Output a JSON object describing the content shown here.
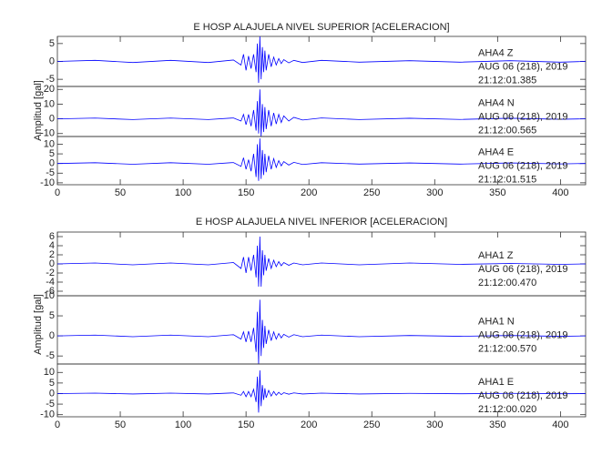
{
  "chart_data": [
    {
      "type": "line",
      "title": "E HOSP ALAJUELA NIVEL SUPERIOR [ACELERACION]",
      "y_label": "Amplitud [gal]",
      "xlim": [
        0,
        420
      ],
      "xticks": [
        0,
        50,
        100,
        150,
        200,
        250,
        300,
        350,
        400
      ],
      "x": [
        0,
        30,
        60,
        90,
        120,
        140,
        146,
        148,
        150,
        152,
        154,
        156,
        158,
        159,
        160,
        161,
        162,
        163,
        164,
        165,
        166,
        168,
        170,
        172,
        174,
        176,
        178,
        180,
        184,
        188,
        195,
        210,
        240,
        280,
        320,
        360,
        400,
        420
      ],
      "panels": [
        {
          "ylim": [
            -7,
            7
          ],
          "yticks": [
            -5,
            0,
            5
          ],
          "date": "AUG 06 (218), 2019",
          "time": "21:12:01.385",
          "series": [
            {
              "name": "AHA4   Z",
              "color": "#0000ff",
              "values": [
                0,
                0.3,
                -0.3,
                0.3,
                -0.3,
                0.4,
                -1,
                2,
                -2.5,
                1.5,
                -2,
                2,
                -3,
                5,
                -6,
                7,
                -5,
                4,
                -3,
                3,
                -2.5,
                2,
                -1.5,
                1.2,
                -1,
                0.8,
                -0.6,
                0.5,
                -0.4,
                0.3,
                -0.3,
                0.3,
                -0.2,
                0.2,
                -0.2,
                0.2,
                -0.2,
                0
              ]
            }
          ]
        },
        {
          "ylim": [
            -12,
            22
          ],
          "yticks": [
            -10,
            0,
            10,
            20
          ],
          "date": "AUG 06 (218), 2019",
          "time": "21:12:00.565",
          "series": [
            {
              "name": "AHA4   N",
              "color": "#0000ff",
              "values": [
                0,
                0.5,
                -0.5,
                0.5,
                -0.5,
                0.6,
                -1.5,
                3,
                -4,
                3,
                -5,
                6,
                -8,
                12,
                -10,
                20,
                -12,
                10,
                -9,
                8,
                -7,
                6,
                -5,
                4,
                -3.5,
                3,
                -2.5,
                2,
                -1.5,
                1,
                -0.8,
                0.6,
                -0.5,
                0.4,
                -0.4,
                0.4,
                -0.3,
                0
              ]
            }
          ]
        },
        {
          "ylim": [
            -11,
            14
          ],
          "yticks": [
            -10,
            -5,
            0,
            5,
            10
          ],
          "date": "AUG 06 (218), 2019",
          "time": "21:12:01.515",
          "series": [
            {
              "name": "AHA4   E",
              "color": "#0000ff",
              "values": [
                0,
                0.4,
                -0.4,
                0.4,
                -0.4,
                0.5,
                -1.5,
                3,
                -3,
                2,
                -4,
                5,
                -7,
                10,
                -9,
                13,
                -8,
                7,
                -6,
                5,
                -4.5,
                4,
                -3,
                2.5,
                -2,
                1.5,
                -1.2,
                1,
                -0.8,
                0.6,
                -0.5,
                0.4,
                -0.3,
                0.3,
                -0.3,
                0.3,
                -0.2,
                0
              ]
            }
          ]
        }
      ]
    },
    {
      "type": "line",
      "title": "E HOSP ALAJUELA NIVEL INFERIOR [ACELERACION]",
      "y_label": "Amplitud [gal]",
      "xlim": [
        0,
        420
      ],
      "xticks": [
        0,
        50,
        100,
        150,
        200,
        250,
        300,
        350,
        400
      ],
      "x": [
        0,
        30,
        60,
        90,
        120,
        140,
        146,
        148,
        150,
        152,
        154,
        156,
        158,
        159,
        160,
        161,
        162,
        163,
        164,
        165,
        166,
        168,
        170,
        172,
        174,
        176,
        178,
        180,
        184,
        188,
        195,
        210,
        240,
        280,
        320,
        360,
        400,
        420
      ],
      "panels": [
        {
          "ylim": [
            -7,
            7
          ],
          "yticks": [
            -6,
            -4,
            -2,
            0,
            2,
            4,
            6
          ],
          "date": "AUG 06 (218), 2019",
          "time": "21:12:00.470",
          "series": [
            {
              "name": "AHA1   Z",
              "color": "#0000ff",
              "values": [
                0,
                0.2,
                -0.2,
                0.2,
                -0.2,
                0.3,
                -1,
                1.5,
                -2,
                1.5,
                -1.5,
                2,
                -3,
                4,
                -5,
                6,
                -5,
                3,
                -2.5,
                2,
                -1.5,
                1.2,
                -1,
                0.8,
                -0.6,
                0.5,
                -0.4,
                0.3,
                -0.3,
                0.2,
                -0.2,
                0.2,
                -0.2,
                0.2,
                -0.1,
                0.1,
                -0.1,
                0
              ]
            }
          ]
        },
        {
          "ylim": [
            -7,
            10
          ],
          "yticks": [
            -5,
            0,
            5,
            10
          ],
          "date": "AUG 06 (218), 2019",
          "time": "21:12:00.570",
          "series": [
            {
              "name": "AHA1   N",
              "color": "#0000ff",
              "values": [
                0,
                0.2,
                -0.2,
                0.2,
                -0.2,
                0.3,
                -0.8,
                1,
                -1.5,
                1.2,
                -1.5,
                2,
                -4,
                6,
                -7,
                9,
                -5,
                4,
                -3,
                2.5,
                -2,
                1.5,
                -1.2,
                1,
                -0.8,
                0.6,
                -0.5,
                0.4,
                -0.3,
                0.3,
                -0.2,
                0.2,
                -0.2,
                0.1,
                -0.1,
                0.1,
                -0.1,
                0
              ]
            }
          ]
        },
        {
          "ylim": [
            -11,
            14
          ],
          "yticks": [
            -10,
            -5,
            0,
            5,
            10
          ],
          "date": "AUG 06 (218), 2019",
          "time": "21:12:00.020",
          "series": [
            {
              "name": "AHA1   E",
              "color": "#0000ff",
              "values": [
                0,
                0.2,
                -0.2,
                0.2,
                -0.2,
                0.3,
                -0.8,
                1,
                -1.5,
                1,
                -1.5,
                2,
                -4,
                8,
                -9,
                11,
                -6,
                4,
                -3,
                2.5,
                -2,
                1.5,
                -1.2,
                1,
                -0.8,
                0.6,
                -0.5,
                0.4,
                -0.3,
                0.3,
                -0.2,
                0.2,
                -0.2,
                0.1,
                -0.1,
                0.1,
                -0.1,
                0
              ]
            }
          ]
        }
      ]
    }
  ]
}
